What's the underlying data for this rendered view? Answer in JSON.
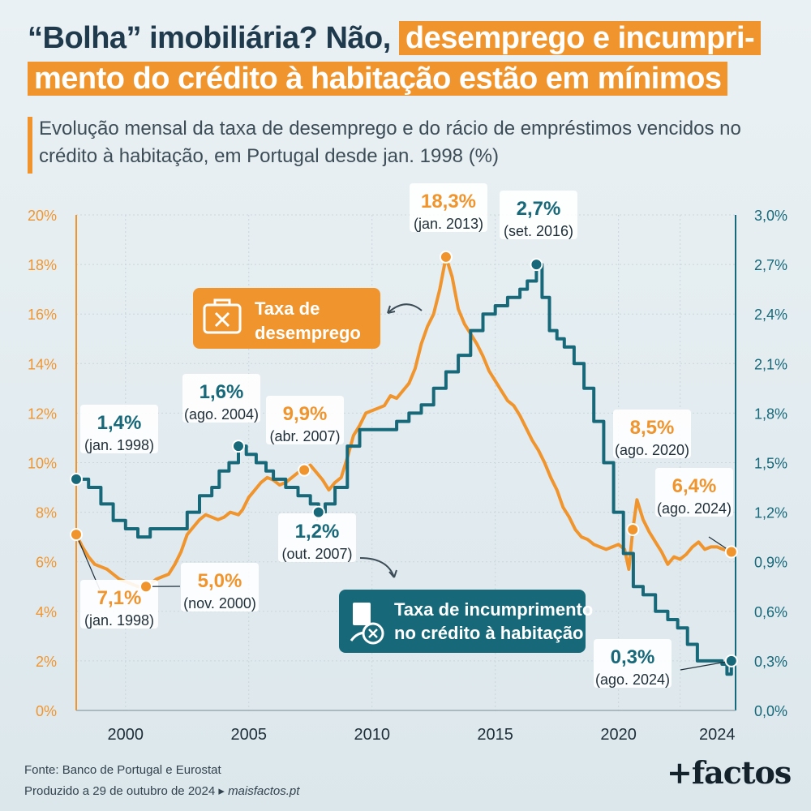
{
  "header": {
    "title_part1": "“Bolha” imobiliária? Não,",
    "title_highlight_a": "desemprego e incumpri-",
    "title_highlight_b": "mento do crédito à habitação estão em mínimos",
    "subtitle": "Evolução mensal da taxa de desemprego e do rácio de empréstimos vencidos no crédito à habitação, em Portugal desde jan. 1998 (%)"
  },
  "colors": {
    "unemployment": "#f0952e",
    "default": "#17697a",
    "title": "#1f3a4d"
  },
  "chart_data": {
    "type": "line",
    "x_ticks": [
      "2000",
      "2005",
      "2010",
      "2015",
      "2020",
      "2024"
    ],
    "x_range": [
      1998.0,
      2024.75
    ],
    "y_left": {
      "ticks": [
        "0%",
        "2%",
        "4%",
        "6%",
        "8%",
        "10%",
        "12%",
        "14%",
        "16%",
        "18%",
        "20%"
      ],
      "range": [
        0,
        20
      ]
    },
    "y_right": {
      "ticks": [
        "0,0%",
        "0,3%",
        "0,6%",
        "0,9%",
        "1,2%",
        "1,5%",
        "1,8%",
        "2,1%",
        "2,4%",
        "2,7%",
        "3,0%"
      ],
      "range": [
        0,
        3
      ]
    },
    "grid": true,
    "series": [
      {
        "name": "Taxa de desemprego",
        "axis": "left",
        "x": [
          1998.0,
          1998.25,
          1998.5,
          1998.75,
          1999.0,
          1999.25,
          1999.5,
          1999.75,
          2000.0,
          2000.25,
          2000.5,
          2000.83,
          2001.0,
          2001.25,
          2001.5,
          2001.75,
          2002.0,
          2002.25,
          2002.5,
          2002.75,
          2003.0,
          2003.25,
          2003.5,
          2003.75,
          2004.0,
          2004.25,
          2004.58,
          2004.75,
          2005.0,
          2005.25,
          2005.5,
          2005.75,
          2006.0,
          2006.25,
          2006.5,
          2006.75,
          2007.0,
          2007.25,
          2007.5,
          2007.75,
          2008.0,
          2008.25,
          2008.5,
          2008.75,
          2009.0,
          2009.25,
          2009.5,
          2009.75,
          2010.0,
          2010.25,
          2010.5,
          2010.75,
          2011.0,
          2011.25,
          2011.5,
          2011.75,
          2012.0,
          2012.25,
          2012.5,
          2012.75,
          2013.0,
          2013.25,
          2013.5,
          2013.75,
          2014.0,
          2014.25,
          2014.5,
          2014.75,
          2015.0,
          2015.25,
          2015.5,
          2015.75,
          2016.0,
          2016.25,
          2016.5,
          2016.75,
          2017.0,
          2017.25,
          2017.5,
          2017.75,
          2018.0,
          2018.25,
          2018.5,
          2018.75,
          2019.0,
          2019.25,
          2019.5,
          2019.75,
          2020.0,
          2020.25,
          2020.42,
          2020.58,
          2020.75,
          2021.0,
          2021.25,
          2021.5,
          2021.75,
          2022.0,
          2022.25,
          2022.5,
          2022.75,
          2023.0,
          2023.25,
          2023.5,
          2023.75,
          2024.0,
          2024.25,
          2024.58
        ],
        "values": [
          7.1,
          6.6,
          6.2,
          5.9,
          5.8,
          5.7,
          5.5,
          5.3,
          5.2,
          5.1,
          5.0,
          5.0,
          5.1,
          5.3,
          5.4,
          5.5,
          5.9,
          6.4,
          7.1,
          7.4,
          7.7,
          7.9,
          7.8,
          7.7,
          7.8,
          8.0,
          7.9,
          8.1,
          8.6,
          8.9,
          9.2,
          9.4,
          9.3,
          9.1,
          9.2,
          9.4,
          9.6,
          9.7,
          9.9,
          9.6,
          9.3,
          8.9,
          9.2,
          9.4,
          10.2,
          11.1,
          11.5,
          12.0,
          12.1,
          12.2,
          12.3,
          12.7,
          12.6,
          12.9,
          13.2,
          13.8,
          14.8,
          15.5,
          16.0,
          17.0,
          18.3,
          17.5,
          16.2,
          15.6,
          15.2,
          14.8,
          14.3,
          13.7,
          13.3,
          12.9,
          12.5,
          12.3,
          11.9,
          11.4,
          10.9,
          10.5,
          10.0,
          9.4,
          8.9,
          8.2,
          7.8,
          7.3,
          7.0,
          6.9,
          6.7,
          6.6,
          6.5,
          6.6,
          6.7,
          6.5,
          5.7,
          7.3,
          8.5,
          7.7,
          7.2,
          6.8,
          6.4,
          5.9,
          6.2,
          6.1,
          6.3,
          6.6,
          6.8,
          6.5,
          6.6,
          6.6,
          6.5,
          6.4
        ]
      },
      {
        "name": "Taxa de incumprimento no crédito à habitação",
        "axis": "right",
        "x": [
          1998.0,
          1998.5,
          1999.0,
          1999.5,
          2000.0,
          2000.5,
          2000.8,
          2001.0,
          2001.5,
          2002.0,
          2002.5,
          2003.0,
          2003.5,
          2003.8,
          2004.2,
          2004.58,
          2004.9,
          2005.3,
          2005.7,
          2006.0,
          2006.5,
          2007.0,
          2007.5,
          2007.83,
          2008.1,
          2008.5,
          2009.0,
          2009.5,
          2010.0,
          2010.5,
          2011.0,
          2011.5,
          2012.0,
          2012.5,
          2013.0,
          2013.5,
          2014.0,
          2014.5,
          2015.0,
          2015.5,
          2016.0,
          2016.3,
          2016.67,
          2016.9,
          2017.2,
          2017.5,
          2017.8,
          2018.2,
          2018.6,
          2019.0,
          2019.4,
          2019.8,
          2020.2,
          2020.6,
          2021.0,
          2021.5,
          2022.0,
          2022.4,
          2022.8,
          2023.2,
          2023.6,
          2024.0,
          2024.2,
          2024.4,
          2024.58
        ],
        "values": [
          1.4,
          1.35,
          1.25,
          1.15,
          1.1,
          1.05,
          1.05,
          1.1,
          1.1,
          1.1,
          1.2,
          1.3,
          1.35,
          1.45,
          1.5,
          1.6,
          1.55,
          1.5,
          1.45,
          1.4,
          1.35,
          1.3,
          1.25,
          1.2,
          1.25,
          1.35,
          1.6,
          1.7,
          1.7,
          1.7,
          1.75,
          1.8,
          1.85,
          1.95,
          2.05,
          2.15,
          2.3,
          2.4,
          2.45,
          2.5,
          2.55,
          2.6,
          2.7,
          2.5,
          2.3,
          2.25,
          2.2,
          2.1,
          1.95,
          1.75,
          1.5,
          1.2,
          0.95,
          0.75,
          0.7,
          0.6,
          0.55,
          0.5,
          0.4,
          0.3,
          0.3,
          0.3,
          0.28,
          0.22,
          0.3
        ]
      }
    ],
    "annotations": [
      {
        "value": "7,1%",
        "date": "(jan. 1998)",
        "series": "unemployment"
      },
      {
        "value": "5,0%",
        "date": "(nov. 2000)",
        "series": "unemployment"
      },
      {
        "value": "9,9%",
        "date": "(abr. 2007)",
        "series": "unemployment"
      },
      {
        "value": "18,3%",
        "date": "(jan. 2013)",
        "series": "unemployment"
      },
      {
        "value": "8,5%",
        "date": "(ago. 2020)",
        "series": "unemployment"
      },
      {
        "value": "6,4%",
        "date": "(ago. 2024)",
        "series": "unemployment"
      },
      {
        "value": "1,4%",
        "date": "(jan. 1998)",
        "series": "default"
      },
      {
        "value": "1,6%",
        "date": "(ago. 2004)",
        "series": "default"
      },
      {
        "value": "1,2%",
        "date": "(out. 2007)",
        "series": "default"
      },
      {
        "value": "2,7%",
        "date": "(set. 2016)",
        "series": "default"
      },
      {
        "value": "0,3%",
        "date": "(ago. 2024)",
        "series": "default"
      }
    ],
    "legend": {
      "unemployment_label": [
        "Taxa de",
        "desemprego"
      ],
      "default_label": [
        "Taxa de incumprimento",
        "no crédito à habitação"
      ]
    }
  },
  "footer": {
    "source": "Fonte: Banco de Portugal e Eurostat",
    "produced": "Produzido a 29 de outubro de 2024 ▸",
    "site": "maisfactos.pt",
    "brand": "+factos"
  }
}
